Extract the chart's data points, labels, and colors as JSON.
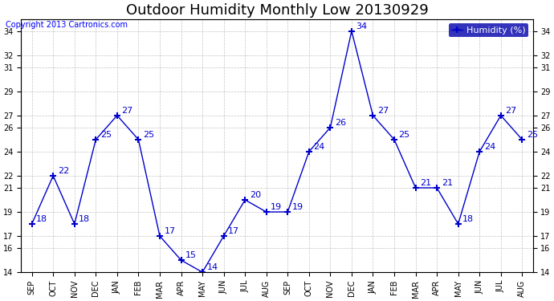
{
  "title": "Outdoor Humidity Monthly Low 20130929",
  "copyright": "Copyright 2013 Cartronics.com",
  "legend_label": "Humidity (%)",
  "x_labels": [
    "SEP",
    "OCT",
    "NOV",
    "DEC",
    "JAN",
    "FEB",
    "MAR",
    "APR",
    "MAY",
    "JUN",
    "JUL",
    "AUG",
    "SEP",
    "OCT",
    "NOV",
    "DEC",
    "JAN",
    "FEB",
    "MAR",
    "APR",
    "MAY",
    "JUN",
    "JUL",
    "AUG"
  ],
  "y_values": [
    18,
    22,
    18,
    25,
    27,
    25,
    17,
    15,
    14,
    17,
    20,
    19,
    19,
    24,
    26,
    34,
    27,
    25,
    21,
    21,
    18,
    24,
    27,
    25
  ],
  "ylim": [
    14,
    35
  ],
  "yticks": [
    14,
    16,
    17,
    19,
    21,
    22,
    24,
    26,
    27,
    29,
    31,
    32,
    34
  ],
  "line_color": "#0000cc",
  "marker_color": "#0000cc",
  "bg_color": "#ffffff",
  "grid_color": "#aaaaaa",
  "title_fontsize": 13,
  "label_fontsize": 8,
  "annotation_fontsize": 8,
  "legend_bg": "#0000aa",
  "legend_text_color": "#ffffff"
}
